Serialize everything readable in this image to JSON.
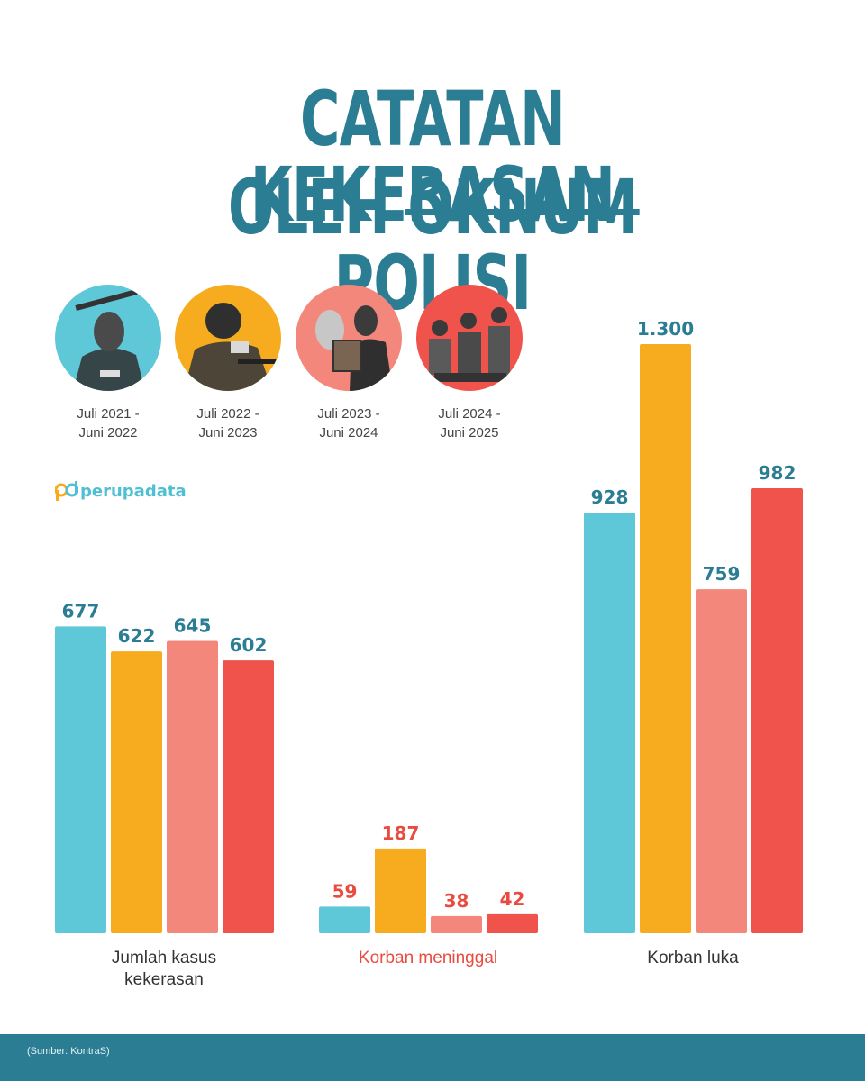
{
  "title": {
    "line1": "CATATAN KEKERASAN",
    "line2_prefix": "OLEH",
    "line2_strike": "OKNUM",
    "line2_suffix": "POLISI"
  },
  "periods": [
    {
      "line1": "Juli 2021 -",
      "line2": "Juni 2022",
      "color": "#5fc8d8"
    },
    {
      "line1": "Juli 2022 -",
      "line2": "Juni 2023",
      "color": "#f7ab1e"
    },
    {
      "line1": "Juli 2023 -",
      "line2": "Juni 2024",
      "color": "#f4877c"
    },
    {
      "line1": "Juli 2024 -",
      "line2": "Juni 2025",
      "color": "#ef534b"
    }
  ],
  "logo": {
    "text": "perupadata"
  },
  "source": "(Sumber: KontraS)",
  "colors": {
    "accent": "#2b7d93",
    "red_label": "#e84b40"
  },
  "chart_data": {
    "type": "bar",
    "categories": [
      "Jumlah kasus kekerasan",
      "Korban meninggal",
      "Korban luka"
    ],
    "category_labels": [
      {
        "line1": "Jumlah kasus",
        "line2": "kekerasan",
        "color": "#333333"
      },
      {
        "line1": "Korban meninggal",
        "line2": "",
        "color": "#e84b40"
      },
      {
        "line1": "Korban luka",
        "line2": "",
        "color": "#333333"
      }
    ],
    "series": [
      {
        "name": "Juli 2021 - Juni 2022",
        "color": "#5fc8d8",
        "values": [
          677,
          59,
          928
        ],
        "labels": [
          "677",
          "59",
          "928"
        ]
      },
      {
        "name": "Juli 2022 - Juni 2023",
        "color": "#f7ab1e",
        "values": [
          622,
          187,
          1300
        ],
        "labels": [
          "622",
          "187",
          "1.300"
        ]
      },
      {
        "name": "Juli 2023 - Juni 2024",
        "color": "#f4877c",
        "values": [
          645,
          38,
          759
        ],
        "labels": [
          "645",
          "38",
          "759"
        ]
      },
      {
        "name": "Juli 2024 - Juni 2025",
        "color": "#ef534b",
        "values": [
          602,
          42,
          982
        ],
        "labels": [
          "602",
          "42",
          "982"
        ]
      }
    ],
    "value_label_colors": [
      "#2b7d93",
      "#e84b40",
      "#2b7d93"
    ],
    "grid": false,
    "legend": "top"
  }
}
